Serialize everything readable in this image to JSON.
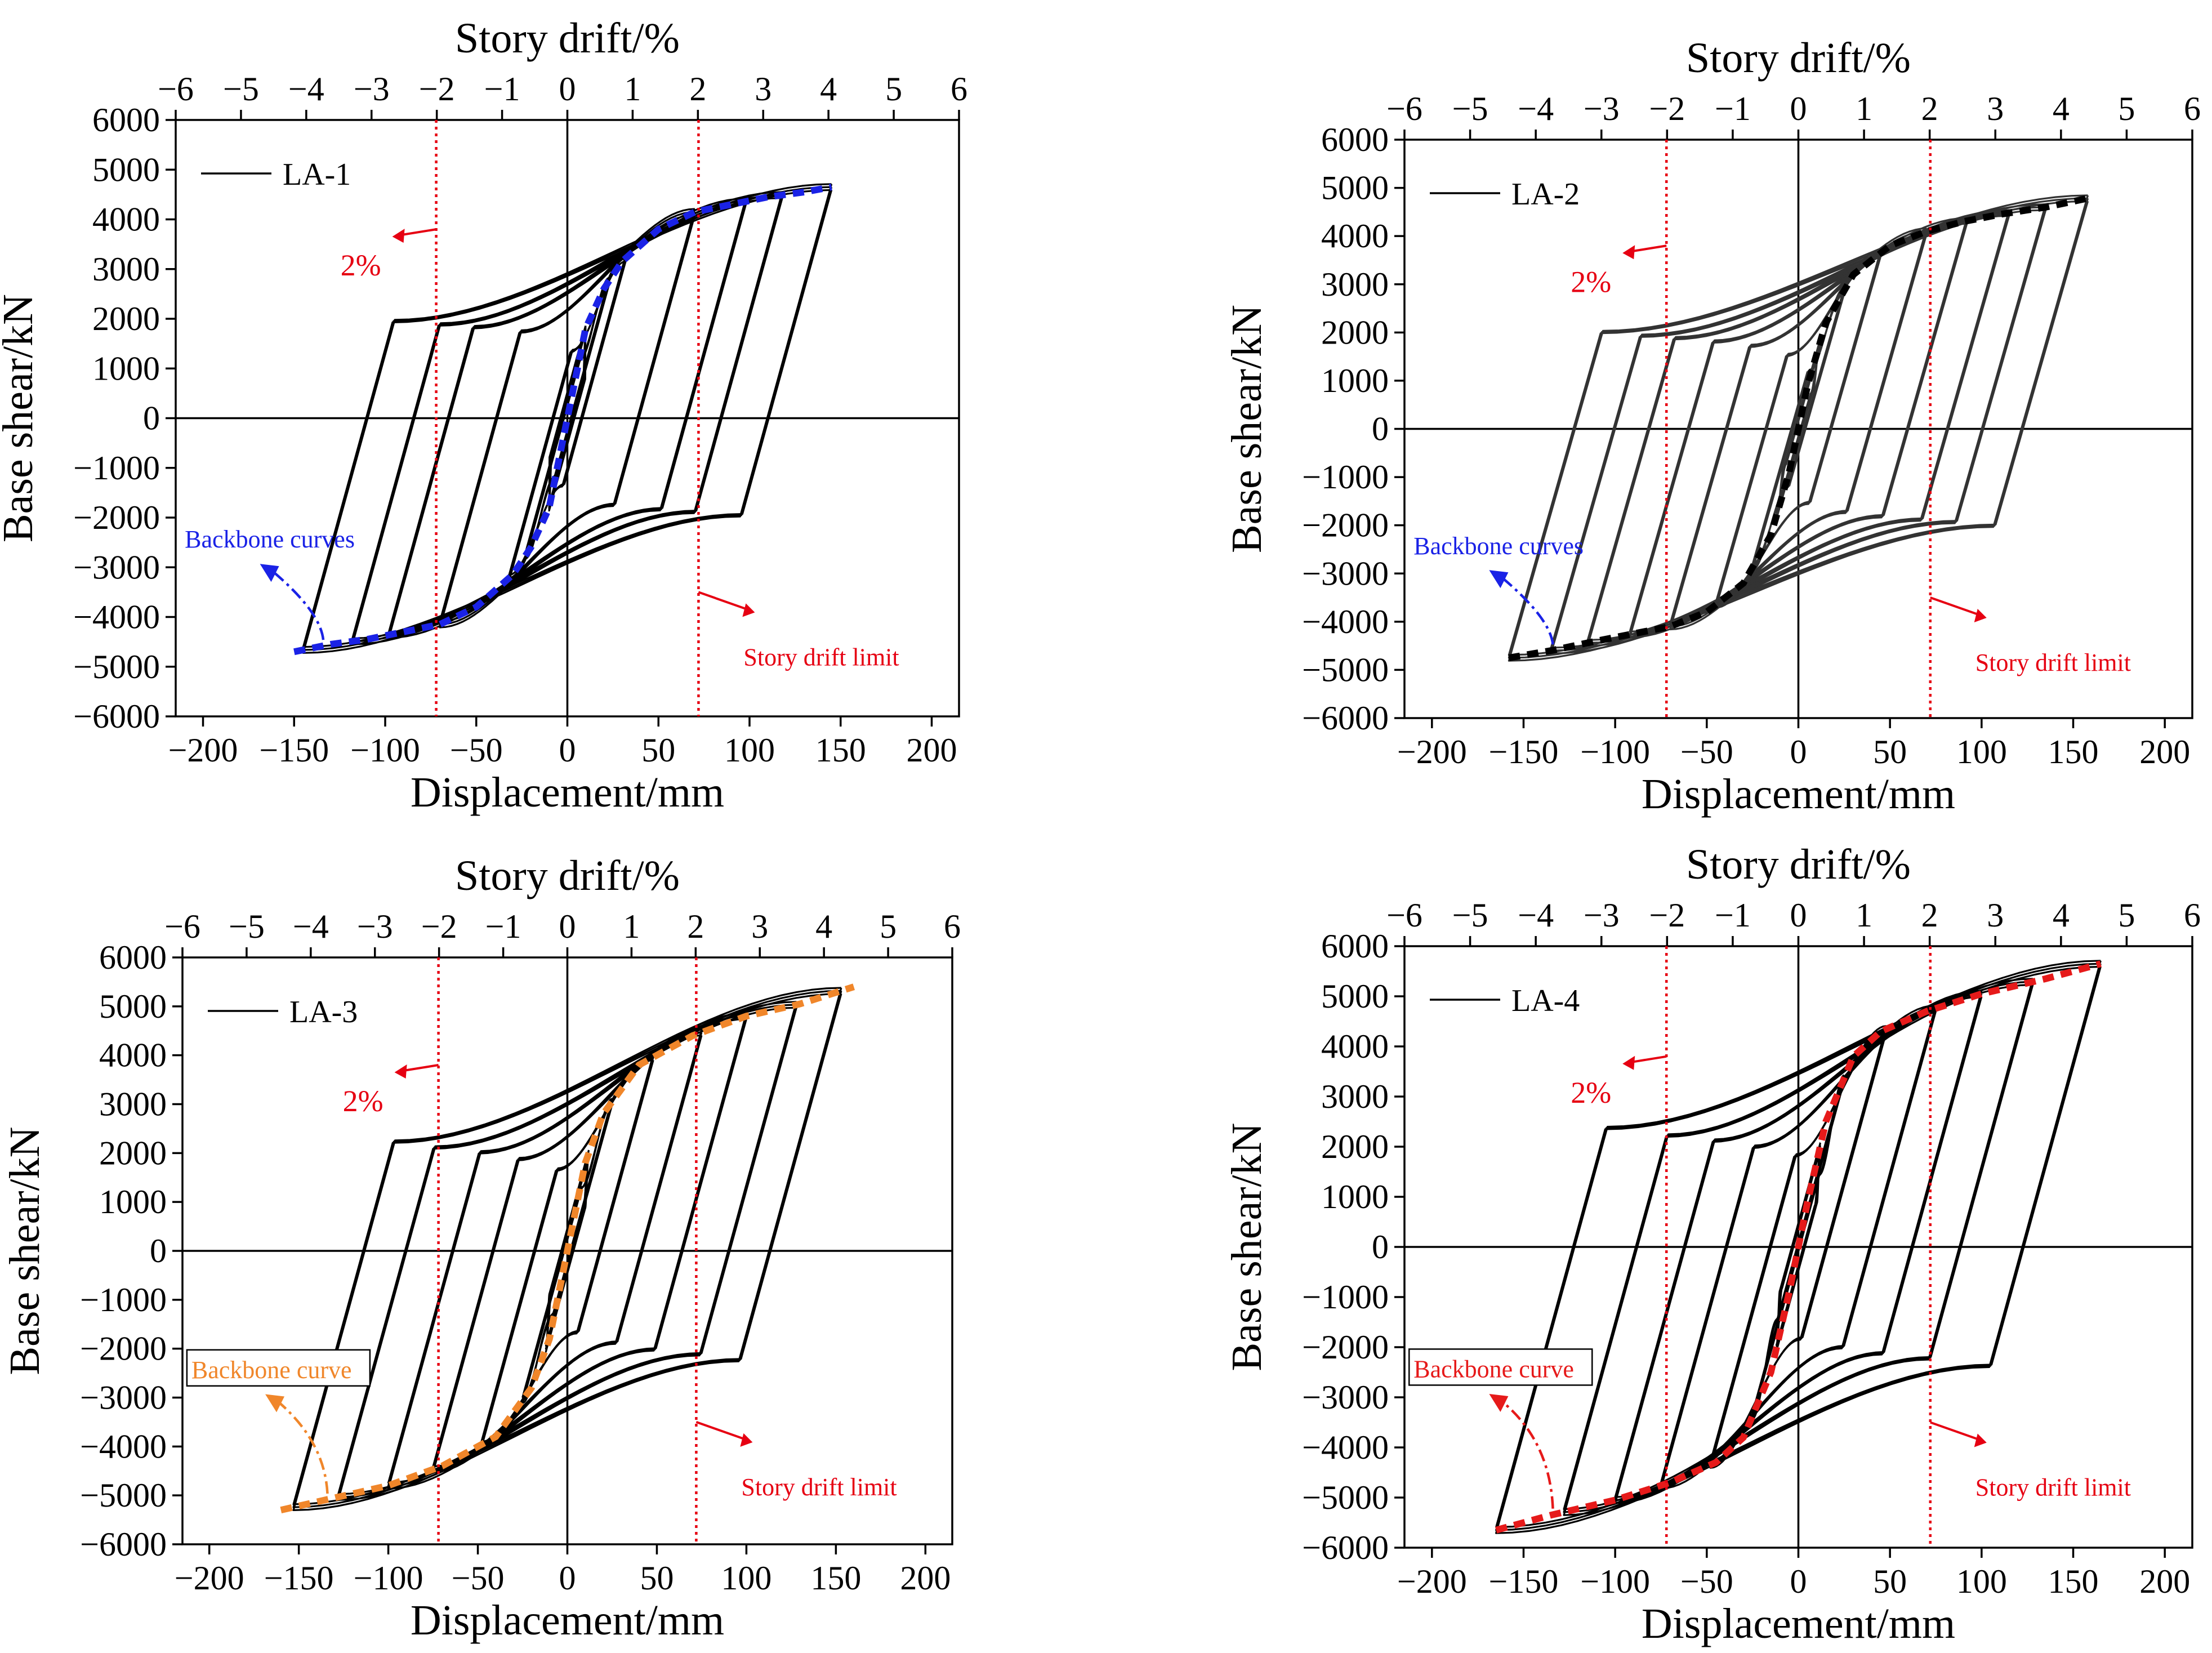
{
  "figure": {
    "axis_labels": {
      "x_bottom": "Displacement/mm",
      "x_top": "Story drift/%",
      "y": "Base shear/kN"
    },
    "x_ticks": [
      -200,
      -150,
      -100,
      -50,
      0,
      50,
      100,
      150,
      200
    ],
    "drift_ticks": [
      -6,
      -5,
      -4,
      -3,
      -2,
      -1,
      0,
      1,
      2,
      3,
      4,
      5,
      6
    ],
    "y_ticks": [
      -6000,
      -5000,
      -4000,
      -3000,
      -2000,
      -1000,
      0,
      1000,
      2000,
      3000,
      4000,
      5000,
      6000
    ],
    "limit_displacement_mm": 72,
    "annotation_2pct": "2%",
    "annotation_limit": "Story drift limit"
  },
  "chart_data": [
    {
      "type": "line",
      "title": "LA-1",
      "legend": "LA-1",
      "backbone_label": "Backbone curves",
      "backbone_color": "#1a22e6",
      "loop_color": "#000000",
      "xlabel": "Displacement/mm",
      "x2label": "Story drift/%",
      "ylabel": "Base shear/kN",
      "xlim": [
        -215,
        215
      ],
      "x2lim": [
        -6,
        6
      ],
      "ylim": [
        -6000,
        6000
      ],
      "loop_amplitudes_mm": [
        10,
        23,
        32,
        70,
        98,
        118,
        145
      ],
      "drift_limits_mm": [
        -72,
        72
      ],
      "backbone": {
        "x": [
          -150,
          -130,
          -110,
          -90,
          -70,
          -50,
          -30,
          -20,
          -10,
          -5,
          0,
          5,
          10,
          20,
          30,
          50,
          70,
          90,
          110,
          130,
          145
        ],
        "y": [
          -4700,
          -4550,
          -4450,
          -4300,
          -4150,
          -3800,
          -3150,
          -2600,
          -1800,
          -900,
          0,
          900,
          1800,
          2600,
          3150,
          3800,
          4150,
          4300,
          4450,
          4550,
          4650
        ]
      }
    },
    {
      "type": "line",
      "title": "LA-2",
      "legend": "LA-2",
      "backbone_label": "Backbone curves",
      "backbone_color": "#000000",
      "loop_color": "#333333",
      "xlabel": "Displacement/mm",
      "x2label": "Story drift/%",
      "ylabel": "Base shear/kN",
      "xlim": [
        -215,
        215
      ],
      "x2lim": [
        -6,
        6
      ],
      "ylim": [
        -6000,
        6000
      ],
      "loop_amplitudes_mm": [
        12,
        25,
        45,
        70,
        92,
        115,
        135,
        158
      ],
      "drift_limits_mm": [
        -72,
        72
      ],
      "backbone": {
        "x": [
          -158,
          -135,
          -110,
          -90,
          -70,
          -50,
          -30,
          -15,
          -5,
          0,
          5,
          15,
          30,
          50,
          70,
          90,
          110,
          135,
          160
        ],
        "y": [
          -4750,
          -4600,
          -4400,
          -4250,
          -4100,
          -3800,
          -3200,
          -2200,
          -900,
          0,
          900,
          2200,
          3200,
          3800,
          4100,
          4300,
          4450,
          4600,
          4800
        ]
      }
    },
    {
      "type": "line",
      "title": "LA-3",
      "legend": "LA-3",
      "backbone_label": "Backbone curve",
      "backbone_color": "#f0862a",
      "loop_color": "#000000",
      "xlabel": "Displacement/mm",
      "x2label": "Story drift/%",
      "ylabel": "Base shear/kN",
      "xlim": [
        -215,
        215
      ],
      "x2lim": [
        -6,
        6
      ],
      "ylim": [
        -6000,
        6000
      ],
      "loop_amplitudes_mm": [
        12,
        25,
        48,
        75,
        100,
        128,
        153
      ],
      "drift_limits_mm": [
        -72,
        72
      ],
      "backbone": {
        "x": [
          -160,
          -130,
          -100,
          -70,
          -40,
          -20,
          -10,
          -5,
          0,
          5,
          10,
          20,
          40,
          70,
          100,
          130,
          160
        ],
        "y": [
          -5300,
          -5050,
          -4800,
          -4400,
          -3800,
          -2800,
          -1800,
          -900,
          0,
          900,
          1800,
          2800,
          3800,
          4400,
          4800,
          5050,
          5400
        ]
      }
    },
    {
      "type": "line",
      "title": "LA-4",
      "legend": "LA-4",
      "backbone_label": "Backbone curve",
      "backbone_color": "#e61a1a",
      "loop_color": "#000000",
      "xlabel": "Displacement/mm",
      "x2label": "Story drift/%",
      "ylabel": "Base shear/kN",
      "xlim": [
        -215,
        215
      ],
      "x2lim": [
        -6,
        6
      ],
      "ylim": [
        -6000,
        6000
      ],
      "loop_amplitudes_mm": [
        12,
        25,
        48,
        75,
        100,
        128,
        165
      ],
      "drift_limits_mm": [
        -72,
        72
      ],
      "backbone": {
        "x": [
          -165,
          -135,
          -100,
          -70,
          -45,
          -30,
          -15,
          -5,
          0,
          5,
          15,
          30,
          45,
          70,
          100,
          135,
          165
        ],
        "y": [
          -5650,
          -5350,
          -5050,
          -4700,
          -4300,
          -3800,
          -2500,
          -900,
          0,
          900,
          2500,
          3800,
          4300,
          4700,
          5050,
          5350,
          5650
        ]
      }
    }
  ]
}
